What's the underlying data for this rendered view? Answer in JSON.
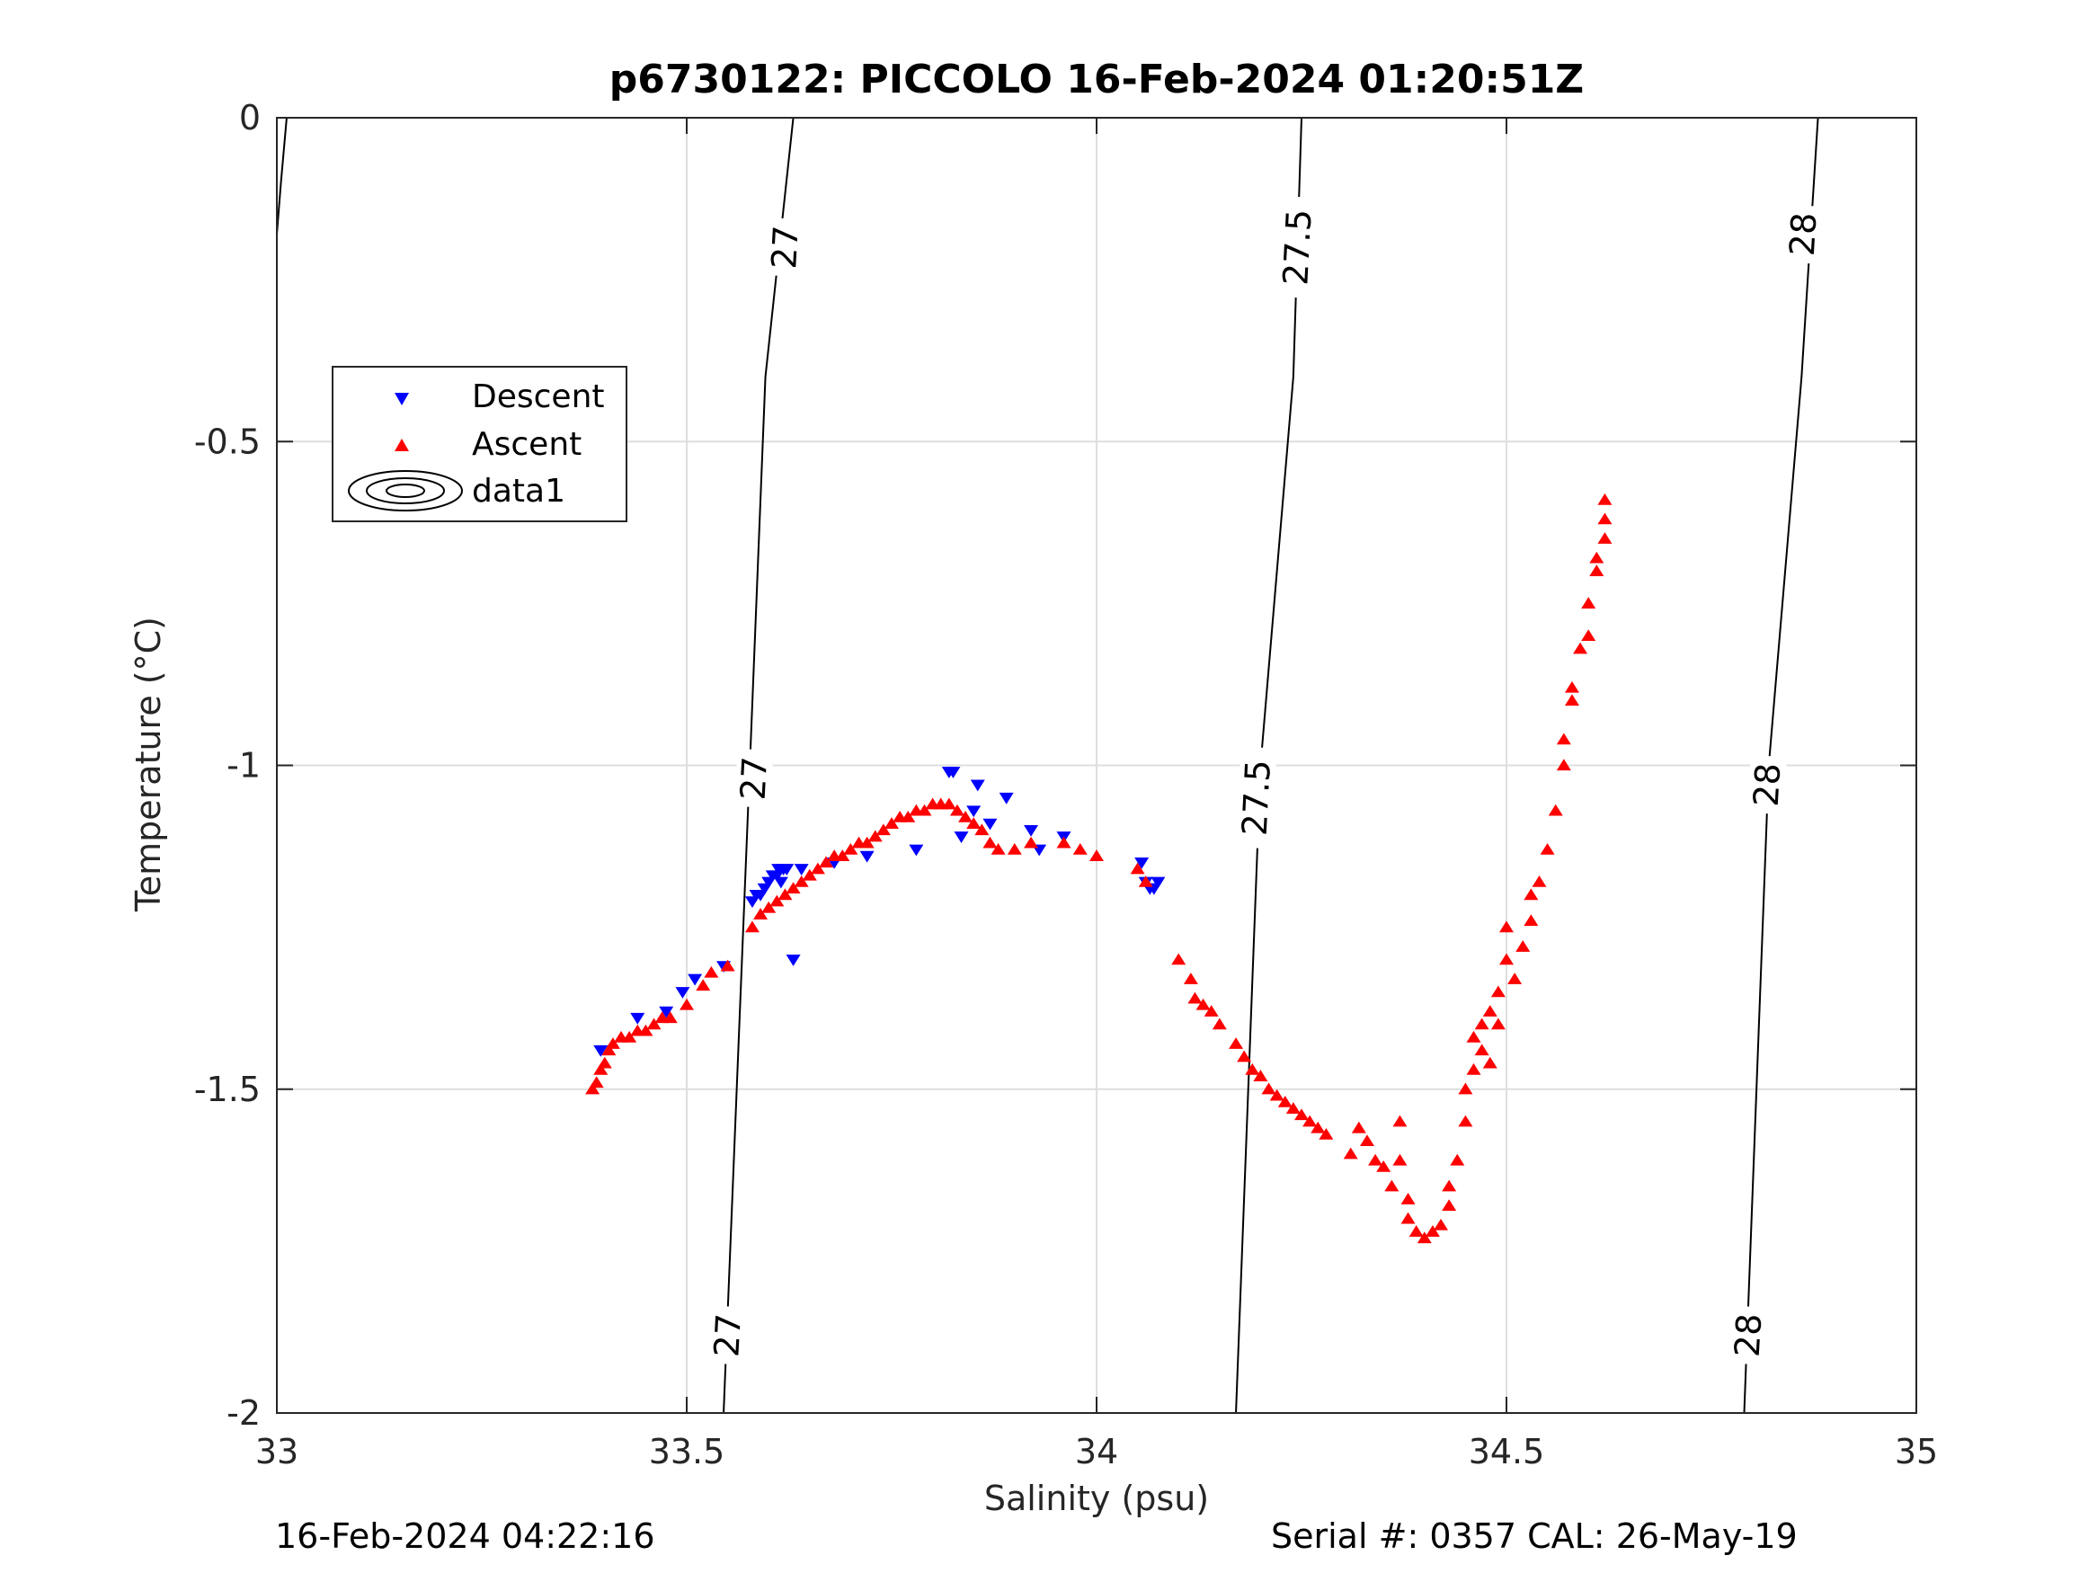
{
  "chart_data": {
    "type": "scatter",
    "title": "p6730122: PICCOLO 16-Feb-2024 01:20:51Z",
    "xlabel": "Salinity (psu)",
    "ylabel": "Temperature (°C)",
    "xlim": [
      33,
      35
    ],
    "ylim": [
      -2,
      0
    ],
    "x_ticks": [
      "33",
      "33.5",
      "34",
      "34.5",
      "35"
    ],
    "y_ticks": [
      "0",
      "-0.5",
      "-1",
      "-1.5",
      "-2"
    ],
    "grid": true,
    "legend": {
      "placement": "upper-left",
      "entries": [
        "Descent",
        "Ascent",
        "data1"
      ]
    },
    "footer_left": "16-Feb-2024 04:22:16",
    "footer_right": "Serial #: 0357  CAL: 26-May-19",
    "density_contours": [
      {
        "level": 27,
        "label": "27",
        "points": [
          [
            33.545,
            -2.0
          ],
          [
            33.577,
            -1.0
          ],
          [
            33.596,
            -0.4
          ],
          [
            33.63,
            0.0
          ]
        ],
        "label_positions": [
          [
            33.55,
            -1.88
          ],
          [
            33.582,
            -1.02
          ],
          [
            33.62,
            -0.2
          ]
        ]
      },
      {
        "level": 27.5,
        "label": "27.5",
        "points": [
          [
            34.17,
            -2.0
          ],
          [
            34.2,
            -1.0
          ],
          [
            34.24,
            -0.4
          ],
          [
            34.25,
            0.0
          ]
        ],
        "label_positions": [
          [
            34.195,
            -1.05
          ],
          [
            34.245,
            -0.2
          ]
        ]
      },
      {
        "level": 28,
        "label": "28",
        "points": [
          [
            34.79,
            -2.0
          ],
          [
            34.82,
            -1.0
          ],
          [
            34.86,
            -0.4
          ],
          [
            34.88,
            0.0
          ]
        ],
        "label_positions": [
          [
            34.795,
            -1.88
          ],
          [
            34.818,
            -1.03
          ],
          [
            34.862,
            -0.18
          ]
        ]
      },
      {
        "level": 26.5,
        "label": "",
        "points": [
          [
            33.0,
            -0.18
          ],
          [
            33.005,
            -0.1
          ],
          [
            33.012,
            0.0
          ]
        ],
        "label_positions": []
      }
    ],
    "series": [
      {
        "name": "Descent",
        "marker": "triangle-down",
        "color": "#0000ff",
        "x": [
          33.395,
          33.44,
          33.475,
          33.495,
          33.51,
          33.545,
          33.58,
          33.585,
          33.59,
          33.595,
          33.6,
          33.605,
          33.61,
          33.615,
          33.618,
          33.612,
          33.622,
          33.63,
          33.64,
          33.68,
          33.72,
          33.78,
          33.82,
          33.825,
          33.835,
          33.85,
          33.855,
          33.87,
          33.89,
          33.92,
          33.93,
          33.96,
          34.055,
          34.06,
          34.065,
          34.07,
          34.075
        ],
        "y": [
          -1.44,
          -1.39,
          -1.38,
          -1.35,
          -1.33,
          -1.31,
          -1.21,
          -1.2,
          -1.2,
          -1.19,
          -1.18,
          -1.17,
          -1.17,
          -1.18,
          -1.16,
          -1.16,
          -1.16,
          -1.3,
          -1.16,
          -1.15,
          -1.14,
          -1.13,
          -1.01,
          -1.01,
          -1.11,
          -1.07,
          -1.03,
          -1.09,
          -1.05,
          -1.1,
          -1.13,
          -1.11,
          -1.15,
          -1.18,
          -1.19,
          -1.19,
          -1.18
        ]
      },
      {
        "name": "Ascent",
        "marker": "triangle-up",
        "color": "#ff0000",
        "x": [
          33.385,
          33.39,
          33.395,
          33.4,
          33.405,
          33.41,
          33.42,
          33.43,
          33.44,
          33.45,
          33.46,
          33.47,
          33.48,
          33.5,
          33.52,
          33.53,
          33.55,
          33.58,
          33.59,
          33.6,
          33.61,
          33.62,
          33.63,
          33.64,
          33.65,
          33.66,
          33.67,
          33.68,
          33.69,
          33.7,
          33.71,
          33.72,
          33.73,
          33.74,
          33.75,
          33.76,
          33.77,
          33.78,
          33.79,
          33.8,
          33.81,
          33.82,
          33.83,
          33.84,
          33.85,
          33.86,
          33.87,
          33.88,
          33.9,
          33.92,
          33.96,
          33.98,
          34.0,
          34.05,
          34.06,
          34.1,
          34.115,
          34.12,
          34.13,
          34.14,
          34.15,
          34.17,
          34.18,
          34.19,
          34.2,
          34.21,
          34.22,
          34.23,
          34.24,
          34.25,
          34.26,
          34.27,
          34.28,
          34.31,
          34.32,
          34.33,
          34.34,
          34.35,
          34.36,
          34.37,
          34.37,
          34.38,
          34.38,
          34.39,
          34.4,
          34.41,
          34.42,
          34.43,
          34.43,
          34.44,
          34.45,
          34.45,
          34.46,
          34.46,
          34.47,
          34.47,
          34.48,
          34.48,
          34.49,
          34.49,
          34.5,
          34.5,
          34.51,
          34.52,
          34.53,
          34.53,
          34.54,
          34.55,
          34.56,
          34.57,
          34.57,
          34.58,
          34.58,
          34.59,
          34.6,
          34.6,
          34.61,
          34.61,
          34.62,
          34.62,
          34.62
        ],
        "y": [
          -1.5,
          -1.49,
          -1.47,
          -1.46,
          -1.44,
          -1.43,
          -1.42,
          -1.42,
          -1.41,
          -1.41,
          -1.4,
          -1.39,
          -1.39,
          -1.37,
          -1.34,
          -1.32,
          -1.31,
          -1.25,
          -1.23,
          -1.22,
          -1.21,
          -1.2,
          -1.19,
          -1.18,
          -1.17,
          -1.16,
          -1.15,
          -1.14,
          -1.14,
          -1.13,
          -1.12,
          -1.12,
          -1.11,
          -1.1,
          -1.09,
          -1.08,
          -1.08,
          -1.07,
          -1.07,
          -1.06,
          -1.06,
          -1.06,
          -1.07,
          -1.08,
          -1.09,
          -1.1,
          -1.12,
          -1.13,
          -1.13,
          -1.12,
          -1.12,
          -1.13,
          -1.14,
          -1.16,
          -1.18,
          -1.3,
          -1.33,
          -1.36,
          -1.37,
          -1.38,
          -1.4,
          -1.43,
          -1.45,
          -1.47,
          -1.48,
          -1.5,
          -1.51,
          -1.52,
          -1.53,
          -1.54,
          -1.55,
          -1.56,
          -1.57,
          -1.6,
          -1.56,
          -1.58,
          -1.61,
          -1.62,
          -1.65,
          -1.55,
          -1.61,
          -1.67,
          -1.7,
          -1.72,
          -1.73,
          -1.72,
          -1.71,
          -1.68,
          -1.65,
          -1.61,
          -1.55,
          -1.5,
          -1.47,
          -1.42,
          -1.44,
          -1.4,
          -1.46,
          -1.38,
          -1.4,
          -1.35,
          -1.3,
          -1.25,
          -1.33,
          -1.28,
          -1.2,
          -1.24,
          -1.18,
          -1.13,
          -1.07,
          -1.0,
          -0.96,
          -0.9,
          -0.88,
          -0.82,
          -0.8,
          -0.75,
          -0.7,
          -0.68,
          -0.65,
          -0.62,
          -0.59
        ]
      }
    ]
  }
}
